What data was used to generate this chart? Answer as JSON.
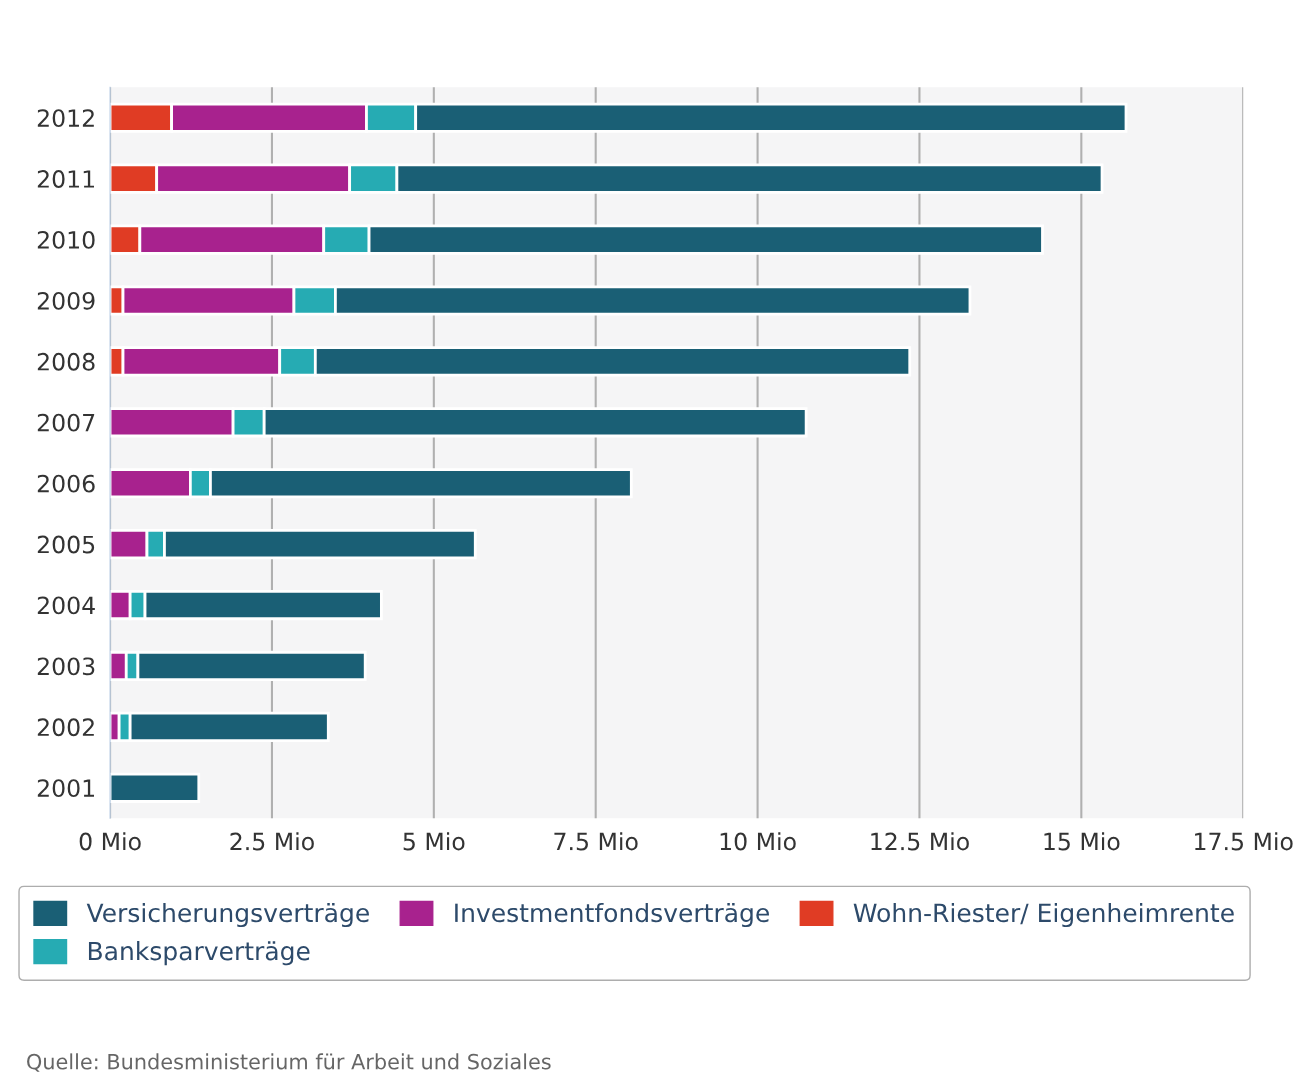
{
  "chart_data": {
    "type": "bar",
    "orientation": "horizontal",
    "stacked": true,
    "categories": [
      "2012",
      "2011",
      "2010",
      "2009",
      "2008",
      "2007",
      "2006",
      "2005",
      "2004",
      "2003",
      "2002",
      "2001"
    ],
    "series": [
      {
        "name": "Wohn-Riester/ Eigenheimrente",
        "color": "#e03c24",
        "values": [
          0.95,
          0.72,
          0.46,
          0.2,
          0.2,
          null,
          null,
          null,
          null,
          null,
          null,
          null
        ]
      },
      {
        "name": "Investmentfondsverträge",
        "color": "#a8228e",
        "values": [
          3.01,
          2.98,
          2.84,
          2.64,
          2.42,
          1.9,
          1.24,
          0.57,
          0.31,
          0.25,
          0.14,
          null
        ]
      },
      {
        "name": "Banksparverträge",
        "color": "#26abb3",
        "values": [
          0.76,
          0.73,
          0.7,
          0.64,
          0.55,
          0.48,
          0.31,
          0.27,
          0.23,
          0.18,
          0.17,
          null
        ]
      },
      {
        "name": "Versicherungsverträge",
        "color": "#1a5f75",
        "values": [
          10.97,
          10.89,
          10.4,
          9.8,
          9.18,
          8.37,
          6.5,
          4.8,
          3.65,
          3.51,
          3.06,
          1.37
        ]
      }
    ],
    "xlim": [
      0,
      17.5
    ],
    "xticks": [
      {
        "value": 0,
        "label": "0 Mio"
      },
      {
        "value": 2.5,
        "label": "2.5 Mio"
      },
      {
        "value": 5,
        "label": "5 Mio"
      },
      {
        "value": 7.5,
        "label": "7.5 Mio"
      },
      {
        "value": 10,
        "label": "10 Mio"
      },
      {
        "value": 12.5,
        "label": "12.5 Mio"
      },
      {
        "value": 15,
        "label": "15 Mio"
      },
      {
        "value": 17.5,
        "label": "17.5 Mio"
      }
    ],
    "grid": "x",
    "legend": "bottom",
    "annotations": [
      "Quelle: Bundesministerium für Arbeit und Soziales"
    ]
  }
}
